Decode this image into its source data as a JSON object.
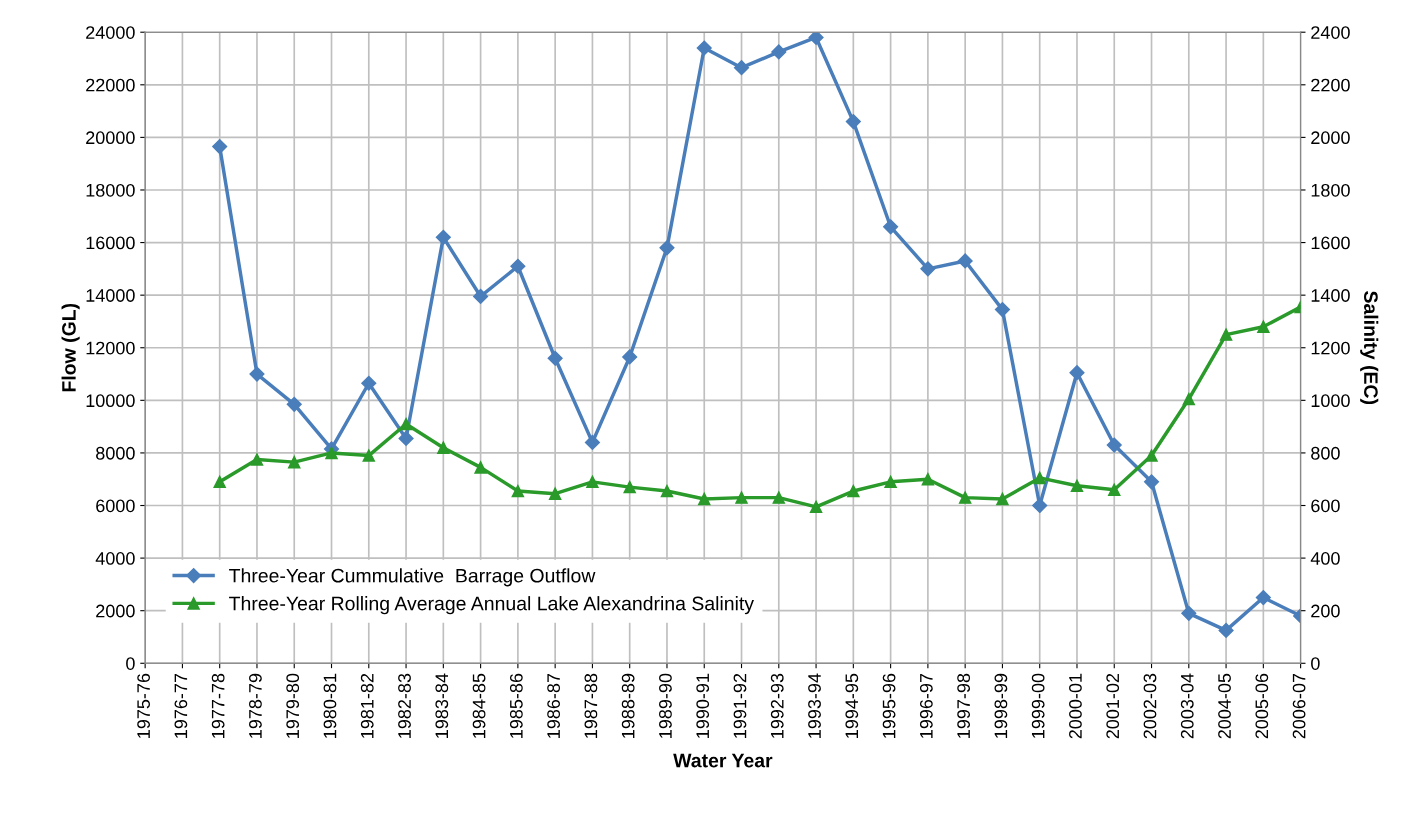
{
  "chart_data": {
    "type": "line",
    "xlabel": "Water Year",
    "ylabel": "Flow (GL)",
    "y2label": "Salinity (EC)",
    "categories": [
      "1975-76",
      "1976-77",
      "1977-78",
      "1978-79",
      "1979-80",
      "1980-81",
      "1981-82",
      "1982-83",
      "1983-84",
      "1984-85",
      "1985-86",
      "1986-87",
      "1987-88",
      "1988-89",
      "1989-90",
      "1990-91",
      "1991-92",
      "1992-93",
      "1993-94",
      "1994-95",
      "1995-96",
      "1996-97",
      "1997-98",
      "1998-99",
      "1999-00",
      "2000-01",
      "2001-02",
      "2002-03",
      "2003-04",
      "2004-05",
      "2005-06",
      "2006-07"
    ],
    "series": [
      {
        "name": "Three-Year Cummulative  Barrage Outflow",
        "color": "#4a7ebb",
        "marker": "diamond",
        "values": [
          null,
          null,
          19650,
          11000,
          9850,
          8150,
          10650,
          8550,
          16200,
          13950,
          15100,
          11600,
          8400,
          11650,
          15800,
          23400,
          22650,
          23250,
          23800,
          20600,
          16600,
          15000,
          15300,
          13450,
          6000,
          11050,
          8300,
          6900,
          1900,
          1250,
          2500,
          1800
        ]
      },
      {
        "name": "Three-Year Rolling Average Annual Lake Alexandrina Salinity",
        "color": "#2a9a2a",
        "marker": "triangle",
        "axis": "y2",
        "values": [
          null,
          null,
          690,
          775,
          765,
          800,
          790,
          910,
          820,
          745,
          655,
          645,
          690,
          670,
          655,
          625,
          630,
          630,
          595,
          655,
          690,
          700,
          630,
          625,
          705,
          675,
          660,
          790,
          1005,
          1250,
          1280,
          1355
        ]
      }
    ],
    "ylim": [
      0,
      24000
    ],
    "yticks": [
      0,
      2000,
      4000,
      6000,
      8000,
      10000,
      12000,
      14000,
      16000,
      18000,
      20000,
      22000,
      24000
    ],
    "y2lim": [
      0,
      2400
    ],
    "y2ticks": [
      0,
      200,
      400,
      600,
      800,
      1000,
      1200,
      1400,
      1600,
      1800,
      2000,
      2200,
      2400
    ],
    "grid": true,
    "legend": "bottom left"
  }
}
